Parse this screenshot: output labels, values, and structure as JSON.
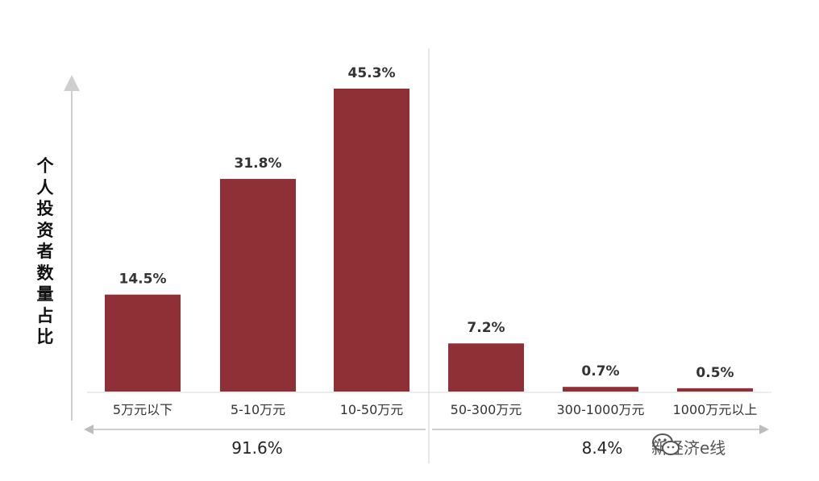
{
  "chart_data": {
    "type": "bar",
    "categories": [
      "5万元以下",
      "5-10万元",
      "10-50万元",
      "50-300万元",
      "300-1000万元",
      "1000万元以上"
    ],
    "values": [
      14.5,
      31.8,
      45.3,
      7.2,
      0.7,
      0.5
    ],
    "data_labels": [
      "14.5%",
      "31.8%",
      "45.3%",
      "7.2%",
      "0.7%",
      "0.5%"
    ],
    "ylabel": "个人投资者数量占比",
    "ylim": [
      0,
      50
    ],
    "bar_color": "#8e3036",
    "grid": false,
    "groups": [
      {
        "label": "91.6%",
        "categories": [
          "5万元以下",
          "5-10万元",
          "10-50万元"
        ]
      },
      {
        "label": "8.4%",
        "categories": [
          "50-300万元",
          "300-1000万元",
          "1000万元以上"
        ]
      }
    ]
  },
  "watermark": {
    "text": "新经济e线",
    "icon": "wechat-icon"
  }
}
